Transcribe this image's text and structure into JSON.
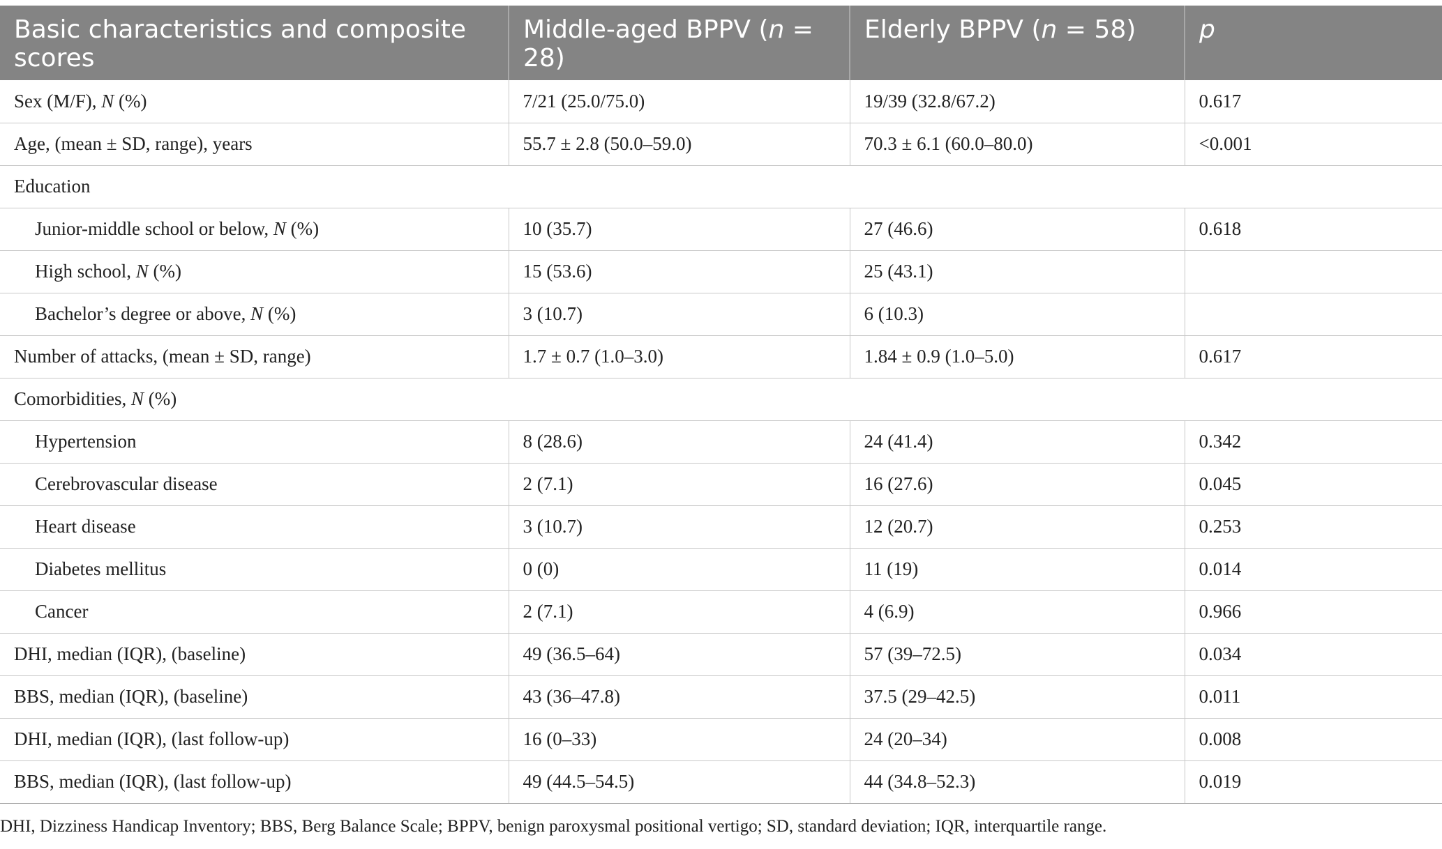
{
  "table": {
    "headers": {
      "col1": "Basic characteristics and composite scores",
      "col2_prefix": "Middle-aged BPPV (",
      "col2_n": "n",
      "col2_suffix": " = 28)",
      "col3_prefix": "Elderly BPPV (",
      "col3_n": "n",
      "col3_suffix": " = 58)",
      "col4": "p"
    },
    "rows": [
      {
        "label_pre": "Sex (M/F), ",
        "label_it": "N",
        "label_post": " (%)",
        "middle": "7/21 (25.0/75.0)",
        "elderly": "19/39 (32.8/67.2)",
        "p": "0.617"
      },
      {
        "label_pre": "Age, (mean ± SD, range), years",
        "label_it": "",
        "label_post": "",
        "middle": "55.7 ± 2.8 (50.0–59.0)",
        "elderly": "70.3 ± 6.1 (60.0–80.0)",
        "p": "<0.001"
      },
      {
        "section": "Education"
      },
      {
        "label_pre": "Junior-middle school or below, ",
        "label_it": "N",
        "label_post": " (%)",
        "middle": "10 (35.7)",
        "elderly": "27 (46.6)",
        "p": "0.618"
      },
      {
        "label_pre": "High school, ",
        "label_it": "N",
        "label_post": " (%)",
        "middle": "15 (53.6)",
        "elderly": "25 (43.1)",
        "p": ""
      },
      {
        "label_pre": "Bachelor’s degree or above, ",
        "label_it": "N",
        "label_post": " (%)",
        "middle": "3 (10.7)",
        "elderly": "6 (10.3)",
        "p": ""
      },
      {
        "label_pre": "Number of attacks, (mean ± SD, range)",
        "label_it": "",
        "label_post": "",
        "middle": "1.7 ± 0.7 (1.0–3.0)",
        "elderly": "1.84 ± 0.9 (1.0–5.0)",
        "p": "0.617"
      },
      {
        "section_pre": "Comorbidities, ",
        "section_it": "N",
        "section_post": " (%)"
      },
      {
        "label_pre": "Hypertension",
        "label_it": "",
        "label_post": "",
        "middle": "8 (28.6)",
        "elderly": "24 (41.4)",
        "p": "0.342"
      },
      {
        "label_pre": "Cerebrovascular disease",
        "label_it": "",
        "label_post": "",
        "middle": "2 (7.1)",
        "elderly": "16 (27.6)",
        "p": "0.045"
      },
      {
        "label_pre": "Heart disease",
        "label_it": "",
        "label_post": "",
        "middle": "3 (10.7)",
        "elderly": "12 (20.7)",
        "p": "0.253"
      },
      {
        "label_pre": "Diabetes mellitus",
        "label_it": "",
        "label_post": "",
        "middle": "0 (0)",
        "elderly": "11 (19)",
        "p": "0.014"
      },
      {
        "label_pre": "Cancer",
        "label_it": "",
        "label_post": "",
        "middle": "2 (7.1)",
        "elderly": "4 (6.9)",
        "p": "0.966"
      },
      {
        "label_pre": "DHI, median (IQR), (baseline)",
        "label_it": "",
        "label_post": "",
        "middle": "49 (36.5–64)",
        "elderly": "57 (39–72.5)",
        "p": "0.034"
      },
      {
        "label_pre": "BBS, median (IQR), (baseline)",
        "label_it": "",
        "label_post": "",
        "middle": "43 (36–47.8)",
        "elderly": "37.5 (29–42.5)",
        "p": "0.011"
      },
      {
        "label_pre": "DHI, median (IQR), (last follow-up)",
        "label_it": "",
        "label_post": "",
        "middle": "16 (0–33)",
        "elderly": "24 (20–34)",
        "p": "0.008"
      },
      {
        "label_pre": "BBS, median (IQR), (last follow-up)",
        "label_it": "",
        "label_post": "",
        "middle": "49 (44.5–54.5)",
        "elderly": "44 (34.8–52.3)",
        "p": "0.019"
      }
    ],
    "footnote": "DHI, Dizziness Handicap Inventory; BBS, Berg Balance Scale; BPPV, benign paroxysmal positional vertigo; SD, standard deviation; IQR, interquartile range."
  }
}
